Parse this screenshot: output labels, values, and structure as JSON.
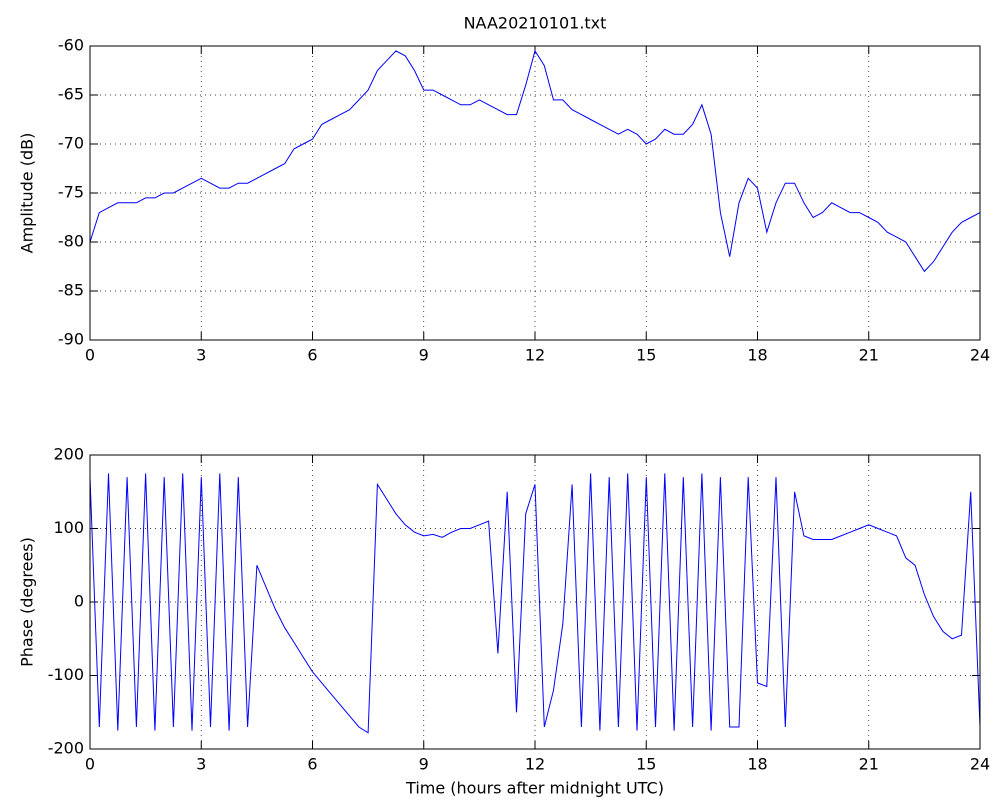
{
  "chart_data": [
    {
      "type": "line",
      "title": "NAA20210101.txt",
      "ylabel": "Amplitude (dB)",
      "color": "#0000ff",
      "grid": true,
      "xlim": [
        0,
        24
      ],
      "xticks": [
        0,
        3,
        6,
        9,
        12,
        15,
        18,
        21,
        24
      ],
      "ylim": [
        -90,
        -60
      ],
      "yticks": [
        -90,
        -85,
        -80,
        -75,
        -70,
        -65,
        -60
      ],
      "x": [
        0,
        0.25,
        0.5,
        0.75,
        1,
        1.25,
        1.5,
        1.75,
        2,
        2.25,
        2.5,
        2.75,
        3,
        3.25,
        3.5,
        3.75,
        4,
        4.25,
        4.5,
        4.75,
        5,
        5.25,
        5.5,
        5.75,
        6,
        6.25,
        6.5,
        6.75,
        7,
        7.25,
        7.5,
        7.75,
        8,
        8.25,
        8.5,
        8.75,
        9,
        9.25,
        9.5,
        9.75,
        10,
        10.25,
        10.5,
        10.75,
        11,
        11.25,
        11.5,
        11.75,
        12,
        12.25,
        12.5,
        12.75,
        13,
        13.25,
        13.5,
        13.75,
        14,
        14.25,
        14.5,
        14.75,
        15,
        15.25,
        15.5,
        15.75,
        16,
        16.25,
        16.5,
        16.75,
        17,
        17.25,
        17.5,
        17.75,
        18,
        18.25,
        18.5,
        18.75,
        19,
        19.25,
        19.5,
        19.75,
        20,
        20.25,
        20.5,
        20.75,
        21,
        21.25,
        21.5,
        21.75,
        22,
        22.25,
        22.5,
        22.75,
        23,
        23.25,
        23.5,
        23.75,
        24
      ],
      "values": [
        -80,
        -77,
        -76.5,
        -76,
        -76,
        -76,
        -75.5,
        -75.5,
        -75,
        -75,
        -74.5,
        -74,
        -73.5,
        -74,
        -74.5,
        -74.5,
        -74,
        -74,
        -73.5,
        -73,
        -72.5,
        -72,
        -70.5,
        -70,
        -69.5,
        -68,
        -67.5,
        -67,
        -66.5,
        -65.5,
        -64.5,
        -62.5,
        -61.5,
        -60.5,
        -61,
        -62.5,
        -64.5,
        -64.5,
        -65,
        -65.5,
        -66,
        -66,
        -65.5,
        -66,
        -66.5,
        -67,
        -67,
        -64,
        -60.5,
        -62,
        -65.5,
        -65.5,
        -66.5,
        -67,
        -67.5,
        -68,
        -68.5,
        -69,
        -68.5,
        -69,
        -70,
        -69.5,
        -68.5,
        -69,
        -69,
        -68,
        -66,
        -69,
        -77,
        -81.5,
        -76,
        -73.5,
        -74.5,
        -79,
        -76,
        -74,
        -74,
        -76,
        -77.5,
        -77,
        -76,
        -76.5,
        -77,
        -77,
        -77.5,
        -78,
        -79,
        -79.5,
        -80,
        -81.5,
        -83,
        -82,
        -80.5,
        -79,
        -78,
        -77.5,
        -77
      ]
    },
    {
      "type": "line",
      "xlabel": "Time (hours after midnight UTC)",
      "ylabel": "Phase (degrees)",
      "color": "#0000ff",
      "grid": true,
      "xlim": [
        0,
        24
      ],
      "xticks": [
        0,
        3,
        6,
        9,
        12,
        15,
        18,
        21,
        24
      ],
      "ylim": [
        -200,
        200
      ],
      "yticks": [
        -200,
        -100,
        0,
        100,
        200
      ],
      "x": [
        0,
        0.25,
        0.5,
        0.75,
        1,
        1.25,
        1.5,
        1.75,
        2,
        2.25,
        2.5,
        2.75,
        3,
        3.25,
        3.5,
        3.75,
        4,
        4.25,
        4.5,
        4.75,
        5,
        5.25,
        5.5,
        5.75,
        6,
        6.25,
        6.5,
        6.75,
        7,
        7.25,
        7.5,
        7.75,
        8,
        8.25,
        8.5,
        8.75,
        9,
        9.25,
        9.5,
        9.75,
        10,
        10.25,
        10.5,
        10.75,
        11,
        11.25,
        11.5,
        11.75,
        12,
        12.25,
        12.5,
        12.75,
        13,
        13.25,
        13.5,
        13.75,
        14,
        14.25,
        14.5,
        14.75,
        15,
        15.25,
        15.5,
        15.75,
        16,
        16.25,
        16.5,
        16.75,
        17,
        17.25,
        17.5,
        17.75,
        18,
        18.25,
        18.5,
        18.75,
        19,
        19.25,
        19.5,
        19.75,
        20,
        20.25,
        20.5,
        20.75,
        21,
        21.25,
        21.5,
        21.75,
        22,
        22.25,
        22.5,
        22.75,
        23,
        23.25,
        23.5,
        23.75,
        24
      ],
      "values": [
        170,
        -170,
        175,
        -175,
        170,
        -170,
        175,
        -175,
        170,
        -170,
        175,
        -175,
        170,
        -170,
        175,
        -175,
        170,
        -170,
        50,
        20,
        -10,
        -35,
        -55,
        -75,
        -95,
        -110,
        -125,
        -140,
        -155,
        -170,
        -178,
        160,
        140,
        120,
        105,
        95,
        90,
        92,
        88,
        95,
        100,
        100,
        105,
        110,
        -70,
        150,
        -150,
        120,
        160,
        -170,
        -120,
        -30,
        160,
        -170,
        175,
        -175,
        170,
        -170,
        175,
        -175,
        170,
        -170,
        175,
        -175,
        170,
        -170,
        175,
        -175,
        170,
        -170,
        -170,
        170,
        -110,
        -115,
        170,
        -170,
        150,
        90,
        85,
        85,
        85,
        90,
        95,
        100,
        105,
        100,
        95,
        90,
        60,
        50,
        10,
        -20,
        -40,
        -50,
        -45,
        150,
        -170
      ]
    }
  ]
}
